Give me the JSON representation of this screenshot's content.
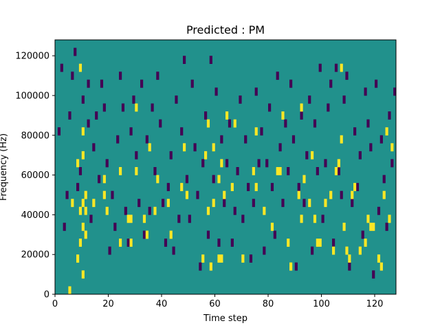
{
  "chart_data": {
    "type": "heatmap",
    "title": "Predicted : PM",
    "xlabel": "Time step",
    "ylabel": "Frequency (Hz)",
    "xlim": [
      0,
      128
    ],
    "ylim": [
      0,
      128000
    ],
    "x_ticks": [
      0,
      20,
      40,
      60,
      80,
      100,
      120
    ],
    "y_ticks": [
      0,
      20000,
      40000,
      60000,
      80000,
      100000,
      120000
    ],
    "x_tick_labels": [
      "0",
      "20",
      "40",
      "60",
      "80",
      "100",
      "120"
    ],
    "y_tick_labels": [
      "0",
      "20000",
      "40000",
      "60000",
      "80000",
      "100000",
      "120000"
    ],
    "colormap": "viridis",
    "grid": false,
    "colors": {
      "background_level": "#21918c",
      "low_level": "#440154",
      "high_level": "#fde725"
    },
    "cell_height_hz": 4000,
    "background_value": 0,
    "high_cells": [
      [
        5,
        0
      ],
      [
        6,
        11
      ],
      [
        8,
        4
      ],
      [
        8,
        16
      ],
      [
        9,
        6
      ],
      [
        9,
        10
      ],
      [
        9,
        28
      ],
      [
        10,
        2
      ],
      [
        10,
        8
      ],
      [
        10,
        11
      ],
      [
        10,
        17
      ],
      [
        10,
        20
      ],
      [
        11,
        7
      ],
      [
        11,
        10
      ],
      [
        11,
        12
      ],
      [
        14,
        11
      ],
      [
        18,
        12
      ],
      [
        18,
        14
      ],
      [
        19,
        10
      ],
      [
        24,
        6
      ],
      [
        24,
        15
      ],
      [
        27,
        9
      ],
      [
        28,
        6
      ],
      [
        28,
        9
      ],
      [
        30,
        15
      ],
      [
        30,
        23
      ],
      [
        33,
        9
      ],
      [
        34,
        7
      ],
      [
        35,
        18
      ],
      [
        37,
        10
      ],
      [
        38,
        14
      ],
      [
        42,
        11
      ],
      [
        43,
        7
      ],
      [
        47,
        13
      ],
      [
        48,
        18
      ],
      [
        49,
        12
      ],
      [
        55,
        4
      ],
      [
        56,
        17
      ],
      [
        57,
        10
      ],
      [
        57,
        21
      ],
      [
        58,
        3
      ],
      [
        59,
        11
      ],
      [
        59,
        18
      ],
      [
        61,
        4
      ],
      [
        61,
        14
      ],
      [
        62,
        4
      ],
      [
        62,
        16
      ],
      [
        63,
        12
      ],
      [
        64,
        22
      ],
      [
        66,
        13
      ],
      [
        67,
        21
      ],
      [
        70,
        4
      ],
      [
        74,
        15
      ],
      [
        75,
        13
      ],
      [
        75,
        20
      ],
      [
        78,
        10
      ],
      [
        81,
        8
      ],
      [
        83,
        15
      ],
      [
        84,
        15
      ],
      [
        85,
        22
      ],
      [
        87,
        6
      ],
      [
        88,
        3
      ],
      [
        91,
        12
      ],
      [
        92,
        9
      ],
      [
        92,
        23
      ],
      [
        93,
        14
      ],
      [
        95,
        11
      ],
      [
        96,
        17
      ],
      [
        97,
        9
      ],
      [
        98,
        6
      ],
      [
        99,
        6
      ],
      [
        101,
        11
      ],
      [
        103,
        12
      ],
      [
        104,
        5
      ],
      [
        105,
        15
      ],
      [
        106,
        16
      ],
      [
        107,
        19
      ],
      [
        107,
        28
      ],
      [
        108,
        8
      ],
      [
        109,
        5
      ],
      [
        110,
        4
      ],
      [
        111,
        12
      ],
      [
        112,
        13
      ],
      [
        114,
        5
      ],
      [
        116,
        6
      ],
      [
        117,
        9
      ],
      [
        118,
        8
      ],
      [
        119,
        8
      ],
      [
        121,
        4
      ],
      [
        122,
        3
      ],
      [
        123,
        12
      ],
      [
        124,
        20
      ],
      [
        125,
        9
      ],
      [
        126,
        18
      ]
    ],
    "low_cells": [
      [
        1,
        20
      ],
      [
        2,
        28
      ],
      [
        3,
        8
      ],
      [
        4,
        12
      ],
      [
        5,
        22
      ],
      [
        6,
        27
      ],
      [
        7,
        30
      ],
      [
        8,
        13
      ],
      [
        9,
        15
      ],
      [
        10,
        24
      ],
      [
        12,
        21
      ],
      [
        12,
        26
      ],
      [
        13,
        9
      ],
      [
        14,
        18
      ],
      [
        15,
        22
      ],
      [
        16,
        14
      ],
      [
        17,
        26
      ],
      [
        18,
        23
      ],
      [
        19,
        16
      ],
      [
        20,
        5
      ],
      [
        21,
        12
      ],
      [
        22,
        8
      ],
      [
        23,
        19
      ],
      [
        24,
        27
      ],
      [
        25,
        23
      ],
      [
        26,
        10
      ],
      [
        27,
        6
      ],
      [
        28,
        20
      ],
      [
        29,
        24
      ],
      [
        30,
        17
      ],
      [
        31,
        11
      ],
      [
        32,
        26
      ],
      [
        33,
        7
      ],
      [
        34,
        19
      ],
      [
        35,
        10
      ],
      [
        36,
        23
      ],
      [
        37,
        15
      ],
      [
        38,
        27
      ],
      [
        39,
        21
      ],
      [
        40,
        11
      ],
      [
        41,
        6
      ],
      [
        42,
        13
      ],
      [
        43,
        17
      ],
      [
        44,
        5
      ],
      [
        45,
        24
      ],
      [
        46,
        9
      ],
      [
        47,
        20
      ],
      [
        48,
        29
      ],
      [
        49,
        14
      ],
      [
        50,
        9
      ],
      [
        51,
        26
      ],
      [
        52,
        18
      ],
      [
        53,
        12
      ],
      [
        54,
        3
      ],
      [
        55,
        16
      ],
      [
        56,
        22
      ],
      [
        57,
        7
      ],
      [
        58,
        29
      ],
      [
        59,
        14
      ],
      [
        60,
        25
      ],
      [
        61,
        6
      ],
      [
        62,
        19
      ],
      [
        63,
        11
      ],
      [
        64,
        16
      ],
      [
        65,
        21
      ],
      [
        66,
        6
      ],
      [
        67,
        10
      ],
      [
        68,
        15
      ],
      [
        69,
        24
      ],
      [
        70,
        9
      ],
      [
        71,
        19
      ],
      [
        72,
        13
      ],
      [
        73,
        4
      ],
      [
        74,
        11
      ],
      [
        75,
        25
      ],
      [
        76,
        16
      ],
      [
        77,
        20
      ],
      [
        78,
        5
      ],
      [
        79,
        16
      ],
      [
        80,
        23
      ],
      [
        81,
        13
      ],
      [
        82,
        7
      ],
      [
        83,
        27
      ],
      [
        84,
        18
      ],
      [
        85,
        11
      ],
      [
        86,
        21
      ],
      [
        87,
        15
      ],
      [
        88,
        26
      ],
      [
        89,
        19
      ],
      [
        90,
        3
      ],
      [
        91,
        13
      ],
      [
        92,
        22
      ],
      [
        93,
        11
      ],
      [
        94,
        17
      ],
      [
        95,
        24
      ],
      [
        96,
        5
      ],
      [
        97,
        21
      ],
      [
        98,
        15
      ],
      [
        99,
        28
      ],
      [
        100,
        9
      ],
      [
        101,
        16
      ],
      [
        102,
        23
      ],
      [
        103,
        26
      ],
      [
        104,
        6
      ],
      [
        105,
        28
      ],
      [
        106,
        15
      ],
      [
        107,
        12
      ],
      [
        108,
        24
      ],
      [
        109,
        27
      ],
      [
        110,
        3
      ],
      [
        111,
        11
      ],
      [
        112,
        20
      ],
      [
        113,
        13
      ],
      [
        114,
        17
      ],
      [
        115,
        7
      ],
      [
        116,
        25
      ],
      [
        117,
        21
      ],
      [
        118,
        18
      ],
      [
        119,
        2
      ],
      [
        120,
        26
      ],
      [
        121,
        10
      ],
      [
        122,
        19
      ],
      [
        123,
        14
      ],
      [
        124,
        8
      ],
      [
        125,
        22
      ],
      [
        126,
        16
      ],
      [
        127,
        25
      ]
    ]
  }
}
